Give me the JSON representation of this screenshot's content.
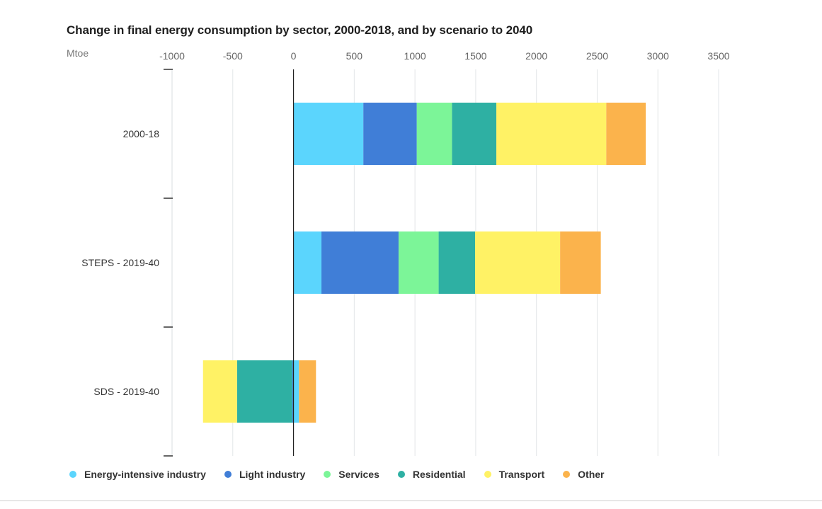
{
  "chart_data": {
    "type": "bar",
    "orientation": "horizontal",
    "stacked": true,
    "title": "Change in final energy consumption by sector, 2000-2018, and by scenario to 2040",
    "unit_label": "Mtoe",
    "xlim": [
      -1000,
      3500
    ],
    "x_ticks": [
      -1000,
      -500,
      0,
      500,
      1000,
      1500,
      2000,
      2500,
      3000,
      3500
    ],
    "x_tick_labels": [
      "-1000",
      "-500",
      "0",
      "500",
      "1000",
      "1500",
      "2000",
      "2500",
      "3000",
      "3500"
    ],
    "x_axis_position": "top",
    "grid": true,
    "legend_position": "bottom-left",
    "categories": [
      "2000-18",
      "STEPS - 2019-40",
      "SDS - 2019-40"
    ],
    "series": [
      {
        "name": "Energy-intensive industry",
        "color": "#5bd5fd",
        "values": [
          575,
          230,
          45
        ]
      },
      {
        "name": "Light industry",
        "color": "#407ed7",
        "values": [
          440,
          635,
          -10
        ]
      },
      {
        "name": "Services",
        "color": "#7cf598",
        "values": [
          290,
          330,
          0
        ]
      },
      {
        "name": "Residential",
        "color": "#2eb0a3",
        "values": [
          365,
          300,
          -455
        ]
      },
      {
        "name": "Transport",
        "color": "#fff265",
        "values": [
          905,
          700,
          -280
        ]
      },
      {
        "name": "Other",
        "color": "#fbb34c",
        "values": [
          325,
          335,
          140
        ]
      }
    ]
  }
}
